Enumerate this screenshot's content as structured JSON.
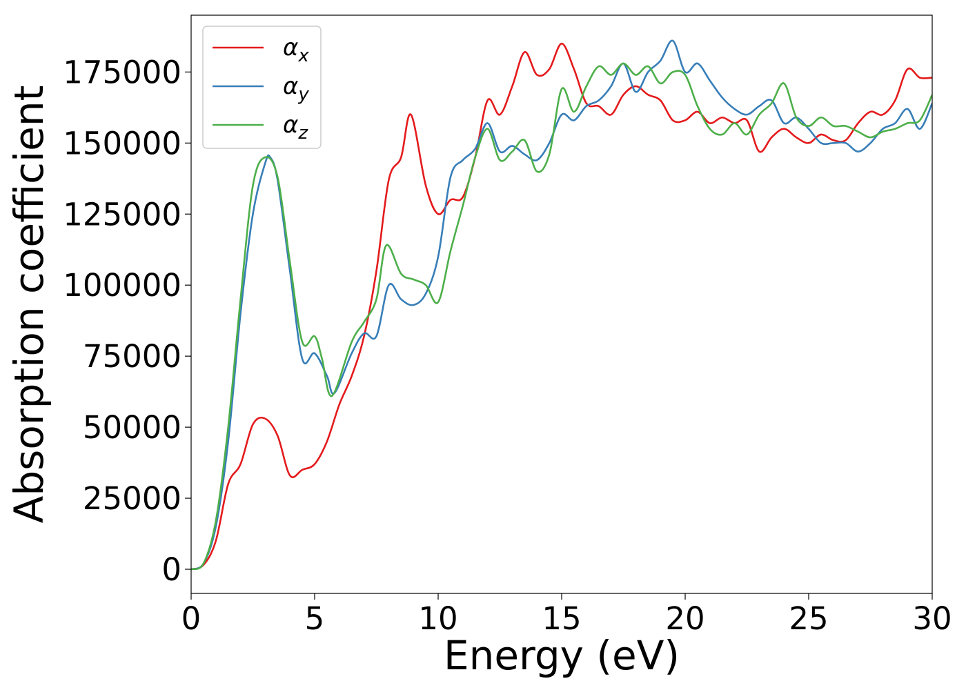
{
  "chart_data": {
    "type": "line",
    "xlabel": "Energy (eV)",
    "ylabel": "Absorption coefficient",
    "xlim": [
      0,
      30
    ],
    "ylim": [
      -8500,
      195000
    ],
    "xticks": [
      0,
      5,
      10,
      15,
      20,
      25,
      30
    ],
    "yticks": [
      0,
      25000,
      50000,
      75000,
      100000,
      125000,
      150000,
      175000
    ],
    "grid": false,
    "legend_position": "top-left",
    "series": [
      {
        "name": "α",
        "subscript": "x",
        "color": "#e41a1c",
        "x": [
          0,
          0.5,
          1.0,
          1.5,
          2.0,
          2.5,
          3.0,
          3.5,
          4.0,
          4.5,
          5.0,
          5.5,
          6.0,
          6.5,
          7.0,
          7.5,
          8.0,
          8.5,
          8.9,
          9.5,
          10.0,
          10.5,
          11.0,
          11.5,
          12.0,
          12.5,
          13.0,
          13.5,
          14.0,
          14.5,
          15.0,
          15.5,
          16.0,
          16.5,
          17.0,
          17.5,
          18.0,
          18.5,
          19.0,
          19.5,
          20.0,
          20.5,
          21.0,
          21.5,
          22.0,
          22.5,
          23.0,
          23.5,
          24.0,
          24.5,
          25.0,
          25.5,
          26.0,
          26.5,
          27.0,
          27.5,
          28.0,
          28.5,
          29.0,
          29.5,
          30.0
        ],
        "y": [
          0,
          1500,
          10000,
          30000,
          37000,
          51000,
          53000,
          47000,
          33000,
          35000,
          37000,
          45000,
          58000,
          68000,
          82000,
          105000,
          137000,
          145000,
          160000,
          135000,
          125000,
          130000,
          131000,
          145000,
          165000,
          160000,
          170000,
          182000,
          174000,
          176000,
          185000,
          176000,
          164000,
          163000,
          160000,
          167000,
          170000,
          167000,
          165000,
          158000,
          158000,
          161000,
          157000,
          159000,
          157000,
          158000,
          147000,
          152000,
          155000,
          152000,
          150000,
          153000,
          151000,
          151000,
          157000,
          161000,
          160000,
          165000,
          176000,
          173000,
          173000
        ]
      },
      {
        "name": "α",
        "subscript": "y",
        "color": "#377eb8",
        "x": [
          0,
          0.5,
          1.0,
          1.5,
          2.0,
          2.5,
          3.0,
          3.2,
          3.5,
          4.0,
          4.5,
          5.0,
          5.5,
          5.8,
          6.5,
          7.0,
          7.5,
          8.0,
          8.5,
          9.0,
          9.5,
          10.0,
          10.5,
          11.0,
          11.5,
          12.0,
          12.5,
          13.0,
          13.5,
          14.0,
          14.5,
          15.0,
          15.5,
          16.0,
          16.5,
          17.0,
          17.5,
          18.0,
          18.5,
          19.0,
          19.5,
          20.0,
          20.5,
          21.0,
          21.5,
          22.0,
          22.5,
          23.0,
          23.5,
          24.0,
          24.5,
          25.0,
          25.5,
          26.0,
          26.5,
          27.0,
          27.5,
          28.0,
          28.5,
          29.0,
          29.5,
          30.0
        ],
        "y": [
          0,
          2000,
          15000,
          45000,
          90000,
          125000,
          143000,
          145000,
          137000,
          105000,
          74000,
          76000,
          68000,
          62000,
          76000,
          83000,
          82000,
          100000,
          95000,
          93000,
          97000,
          110000,
          138000,
          144000,
          148000,
          157000,
          147000,
          149000,
          146000,
          144000,
          150000,
          160000,
          158000,
          163000,
          165000,
          170000,
          178000,
          168000,
          175000,
          179000,
          186000,
          175000,
          178000,
          172000,
          166000,
          162000,
          160000,
          163000,
          165000,
          157000,
          159000,
          155000,
          150000,
          150000,
          150000,
          147000,
          150000,
          155000,
          157000,
          162000,
          155000,
          164000
        ]
      },
      {
        "name": "α",
        "subscript": "z",
        "color": "#4daf4a",
        "x": [
          0,
          0.5,
          1.0,
          1.5,
          2.0,
          2.5,
          3.0,
          3.5,
          4.0,
          4.5,
          5.0,
          5.3,
          5.7,
          6.5,
          7.0,
          7.5,
          7.9,
          8.5,
          9.0,
          9.5,
          10.0,
          10.5,
          11.0,
          11.5,
          12.0,
          12.5,
          13.0,
          13.5,
          14.0,
          14.5,
          15.0,
          15.5,
          16.0,
          16.5,
          17.0,
          17.5,
          18.0,
          18.5,
          19.0,
          19.5,
          20.0,
          20.5,
          21.0,
          21.5,
          22.0,
          22.5,
          23.0,
          23.5,
          24.0,
          24.5,
          25.0,
          25.5,
          26.0,
          26.5,
          27.0,
          27.5,
          28.0,
          28.5,
          29.0,
          29.5,
          30.0
        ],
        "y": [
          0,
          2000,
          17000,
          50000,
          95000,
          135000,
          145000,
          138000,
          108000,
          80000,
          82000,
          74000,
          61000,
          80000,
          87000,
          95000,
          114000,
          104000,
          102000,
          100000,
          94000,
          112000,
          128000,
          145000,
          155000,
          144000,
          147000,
          151000,
          140000,
          146000,
          169000,
          161000,
          170000,
          177000,
          174000,
          178000,
          174000,
          177000,
          171000,
          175000,
          174000,
          163000,
          155000,
          153000,
          157000,
          153000,
          160000,
          164000,
          171000,
          159000,
          156000,
          159000,
          156000,
          156000,
          154000,
          152000,
          154000,
          155000,
          157000,
          158000,
          167000
        ]
      }
    ]
  }
}
